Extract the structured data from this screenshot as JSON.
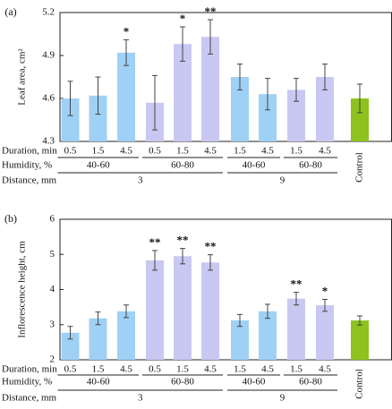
{
  "chart_data": [
    {
      "panel_label": "(a)",
      "type": "bar",
      "ylabel": "Leaf area, cm²",
      "ylim": [
        4.3,
        5.2
      ],
      "yticks": [
        "4.3",
        "4.6",
        "4.9",
        "5.2"
      ],
      "values": [
        4.6,
        4.62,
        4.92,
        4.57,
        4.98,
        5.03,
        4.75,
        4.63,
        4.66,
        4.75,
        4.6
      ],
      "errors": [
        0.12,
        0.13,
        0.09,
        0.19,
        0.12,
        0.12,
        0.09,
        0.11,
        0.08,
        0.09,
        0.1
      ],
      "significance": [
        "",
        "",
        "*",
        "",
        "*",
        "**",
        "",
        "",
        "",
        "",
        ""
      ],
      "bar_colors": [
        "#9fd0f5",
        "#9fd0f5",
        "#9fd0f5",
        "#c9c8f2",
        "#c9c8f2",
        "#c9c8f2",
        "#9fd0f5",
        "#9fd0f5",
        "#c9c8f2",
        "#c9c8f2",
        "#8dc21f"
      ],
      "duration_labels": [
        "0.5",
        "1.5",
        "4.5",
        "0.5",
        "1.5",
        "4.5",
        "1.5",
        "4.5",
        "1.5",
        "4.5"
      ],
      "humidity_groups": [
        "40-60",
        "60-80",
        "40-60",
        "60-80"
      ],
      "distance_groups": [
        "3",
        "9"
      ],
      "control_label": "Control"
    },
    {
      "panel_label": "(b)",
      "type": "bar",
      "ylabel": "Inflorescence height, cm",
      "ylim": [
        2,
        6
      ],
      "yticks": [
        "2",
        "3",
        "4",
        "5",
        "6"
      ],
      "values": [
        2.77,
        3.18,
        3.38,
        4.83,
        4.95,
        4.77,
        3.12,
        3.38,
        3.74,
        3.55,
        3.12
      ],
      "errors": [
        0.18,
        0.18,
        0.18,
        0.28,
        0.22,
        0.22,
        0.17,
        0.2,
        0.18,
        0.17,
        0.13
      ],
      "significance": [
        "",
        "",
        "",
        "**",
        "**",
        "**",
        "",
        "",
        "**",
        "*",
        ""
      ],
      "bar_colors": [
        "#9fd0f5",
        "#9fd0f5",
        "#9fd0f5",
        "#c9c8f2",
        "#c9c8f2",
        "#c9c8f2",
        "#9fd0f5",
        "#9fd0f5",
        "#c9c8f2",
        "#c9c8f2",
        "#8dc21f"
      ],
      "duration_labels": [
        "0.5",
        "1.5",
        "4.5",
        "0.5",
        "1.5",
        "4.5",
        "1.5",
        "4.5",
        "1.5",
        "4.5"
      ],
      "humidity_groups": [
        "40-60",
        "60-80",
        "40-60",
        "60-80"
      ],
      "distance_groups": [
        "3",
        "9"
      ],
      "control_label": "Control"
    }
  ],
  "row_labels": {
    "duration": "Duration, min",
    "humidity": "Humidity, %",
    "distance": "Distance, mm"
  }
}
